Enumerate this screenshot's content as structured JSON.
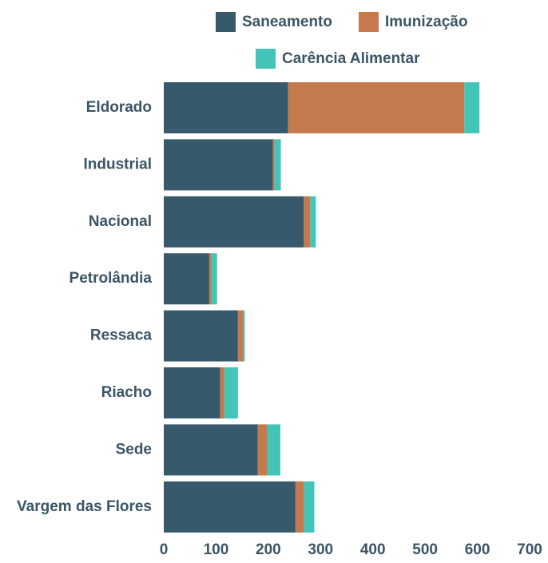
{
  "chart_data": {
    "type": "bar",
    "orientation": "horizontal",
    "stacked": true,
    "categories": [
      "Eldorado",
      "Industrial",
      "Nacional",
      "Petrolândia",
      "Ressaca",
      "Riacho",
      "Sede",
      "Vargem das Flores"
    ],
    "series": [
      {
        "name": "Saneamento",
        "color": "#365a6c",
        "values": [
          238,
          209,
          268,
          87,
          142,
          108,
          180,
          252
        ]
      },
      {
        "name": "Imunização",
        "color": "#c47a4c",
        "values": [
          337,
          3,
          12,
          4,
          10,
          8,
          18,
          16
        ]
      },
      {
        "name": "Carência Alimentar",
        "color": "#43c4b8",
        "values": [
          29,
          12,
          11,
          11,
          3,
          26,
          25,
          20
        ]
      }
    ],
    "xlim": [
      0,
      700
    ],
    "xticks": [
      0,
      100,
      200,
      300,
      400,
      500,
      600,
      700
    ],
    "grid": false
  }
}
